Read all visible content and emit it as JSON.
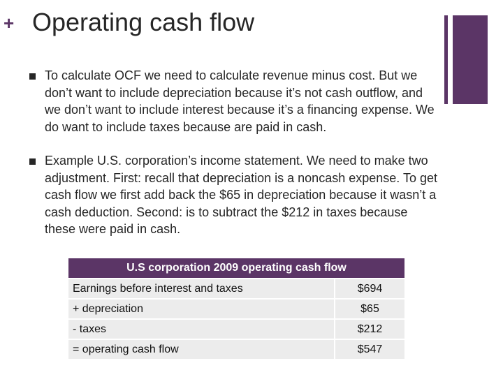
{
  "slide": {
    "plus_glyph": "+",
    "title": "Operating cash flow",
    "bullets": [
      "To calculate OCF we need to calculate revenue minus cost. But we don’t want to include depreciation because it’s not cash outflow, and we don’t want to include interest because it’s a financing expense. We do want to include taxes because are paid in cash.",
      "Example U.S. corporation’s income statement. We need to make two adjustment. First: recall that depreciation is a noncash expense. To get cash flow we first add back the $65 in depreciation because it wasn’t a cash deduction. Second: is to subtract the $212 in taxes because these were paid in cash."
    ]
  },
  "table": {
    "header": "U.S corporation 2009 operating cash flow",
    "rows": [
      {
        "label": "Earnings before interest and taxes",
        "value": "$694"
      },
      {
        "label": "+ depreciation",
        "value": "$65"
      },
      {
        "label": "- taxes",
        "value": "$212"
      },
      {
        "label": "= operating cash flow",
        "value": "$547"
      }
    ]
  },
  "colors": {
    "accent": "#5b3566",
    "table_cell": "#ececec",
    "text": "#262626"
  }
}
